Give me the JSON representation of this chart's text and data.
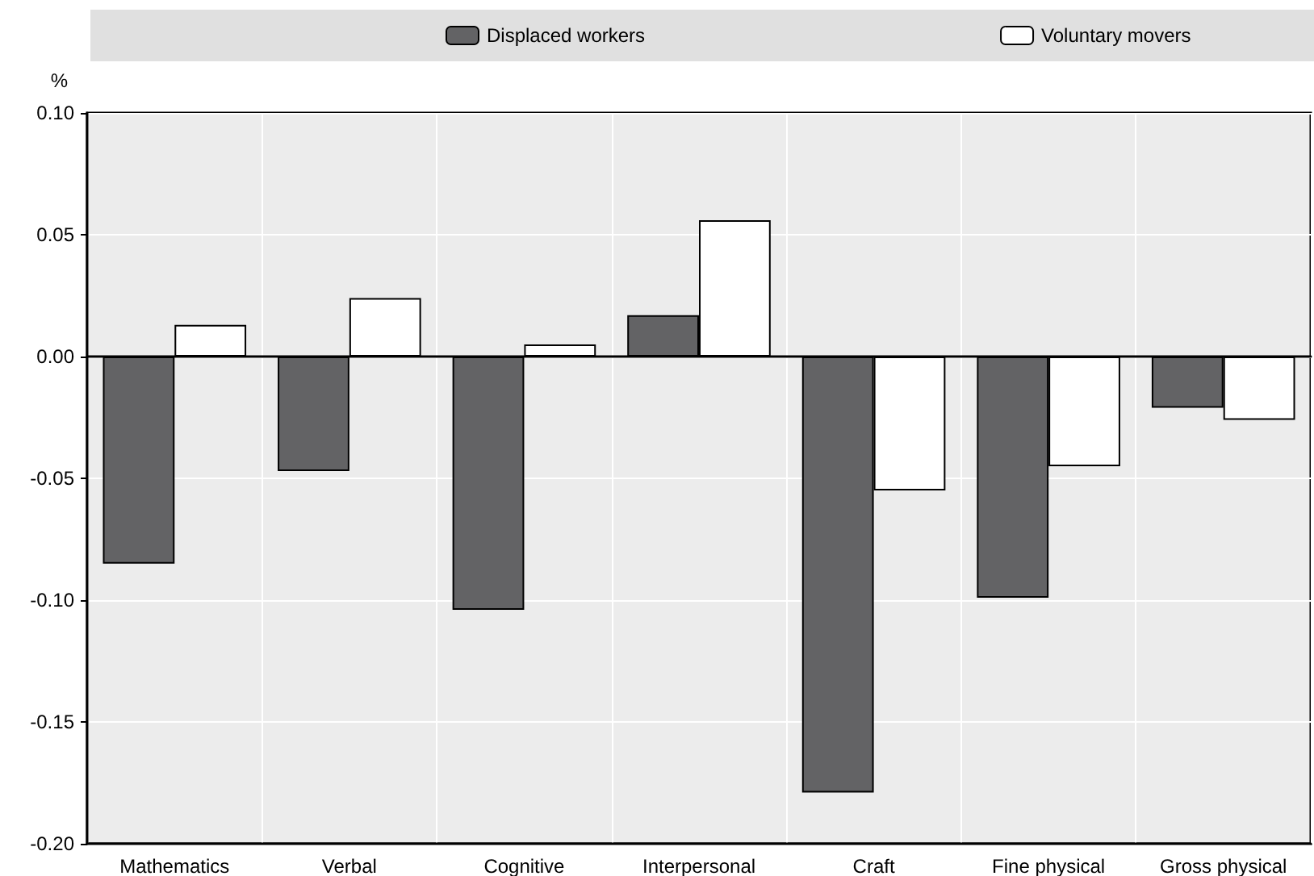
{
  "chart_data": {
    "type": "bar",
    "ylabel": "%",
    "categories": [
      "Mathematics",
      "Verbal",
      "Cognitive",
      "Interpersonal",
      "Craft",
      "Fine physical",
      "Gross physical"
    ],
    "series": [
      {
        "name": "Displaced workers",
        "color": "#636365",
        "values": [
          -0.085,
          -0.047,
          -0.104,
          0.017,
          -0.179,
          -0.099,
          -0.021
        ]
      },
      {
        "name": "Voluntary movers",
        "color": "#ffffff",
        "values": [
          0.013,
          0.024,
          0.005,
          0.056,
          -0.055,
          -0.045,
          -0.026
        ]
      }
    ],
    "ylim": [
      -0.2,
      0.1
    ],
    "yticks": [
      {
        "value": -0.2,
        "label": "-0.20"
      },
      {
        "value": -0.15,
        "label": "-0.15"
      },
      {
        "value": -0.1,
        "label": "-0.10"
      },
      {
        "value": -0.05,
        "label": "-0.05"
      },
      {
        "value": 0,
        "label": "0.00"
      },
      {
        "value": 0.05,
        "label": "0.05"
      },
      {
        "value": 0.1,
        "label": "0.10"
      }
    ],
    "grid": true,
    "legend": "top"
  }
}
